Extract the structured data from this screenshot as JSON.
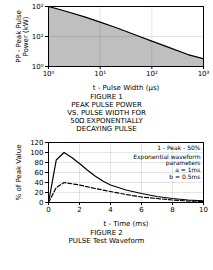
{
  "chart_data": [
    {
      "type": "area",
      "title": "FIGURE 1\nPEAK PULSE POWER\nVS. PULSE WIDTH FOR\n50Ω EXPONENTIALLY\nDECAYING PULSE",
      "x_label": "t - Pulse Width (μs)",
      "y_label": "PP - Peak Pulse\nPower (kW)",
      "log": true,
      "grid": true,
      "xlim": [
        1,
        1000
      ],
      "xticks": [
        {
          "value": 1,
          "label": "10⁰"
        },
        {
          "value": 10,
          "label": "10¹"
        },
        {
          "value": 100,
          "label": "10²"
        },
        {
          "value": 1000,
          "label": "10³"
        }
      ],
      "ylim": [
        1,
        100
      ],
      "yticks": [
        {
          "value": 1,
          "label": "10⁰"
        },
        {
          "value": 10,
          "label": "10¹"
        },
        {
          "value": 100,
          "label": "10²"
        }
      ],
      "series": [
        {
          "x": [
            1,
            2,
            5,
            10,
            20,
            50,
            100,
            200,
            500,
            1000
          ],
          "values": [
            100,
            72,
            45,
            30,
            20,
            11,
            7,
            4.5,
            2.5,
            1.8
          ],
          "color": "#000000",
          "line_style": "solid"
        }
      ]
    },
    {
      "type": "line",
      "title": "FIGURE 2\nPULSE Test Waveform",
      "x_label": "t - Time (ms)",
      "y_label": "% of Peak Value",
      "grid": true,
      "xlim": [
        0,
        10
      ],
      "xticks": [
        0,
        2,
        4,
        6,
        8,
        10
      ],
      "ylim": [
        0,
        120
      ],
      "yticks": [
        0,
        20,
        40,
        60,
        80,
        100,
        120
      ],
      "annotations": [
        "1 - Peak - 50%",
        "Exponential waveform\nparameters\na = 1ms\nb = 0.5ms"
      ],
      "series": [
        {
          "x": [
            0,
            0.5,
            1.0,
            1.5,
            2,
            2.5,
            3,
            3.5,
            4,
            5,
            6,
            7,
            8,
            9,
            10
          ],
          "values": [
            0,
            85,
            100,
            90,
            78,
            65,
            53,
            43,
            35,
            25,
            18,
            12,
            8,
            5,
            3
          ],
          "color": "#000000",
          "line_style": "solid"
        },
        {
          "x": [
            0,
            0.5,
            1,
            2,
            3,
            4,
            5,
            6,
            7,
            8,
            9,
            10
          ],
          "values": [
            0,
            30,
            40,
            35,
            28,
            22,
            16,
            11,
            8,
            5,
            3,
            2
          ],
          "color": "#000000",
          "line_style": "dashed"
        }
      ]
    }
  ]
}
